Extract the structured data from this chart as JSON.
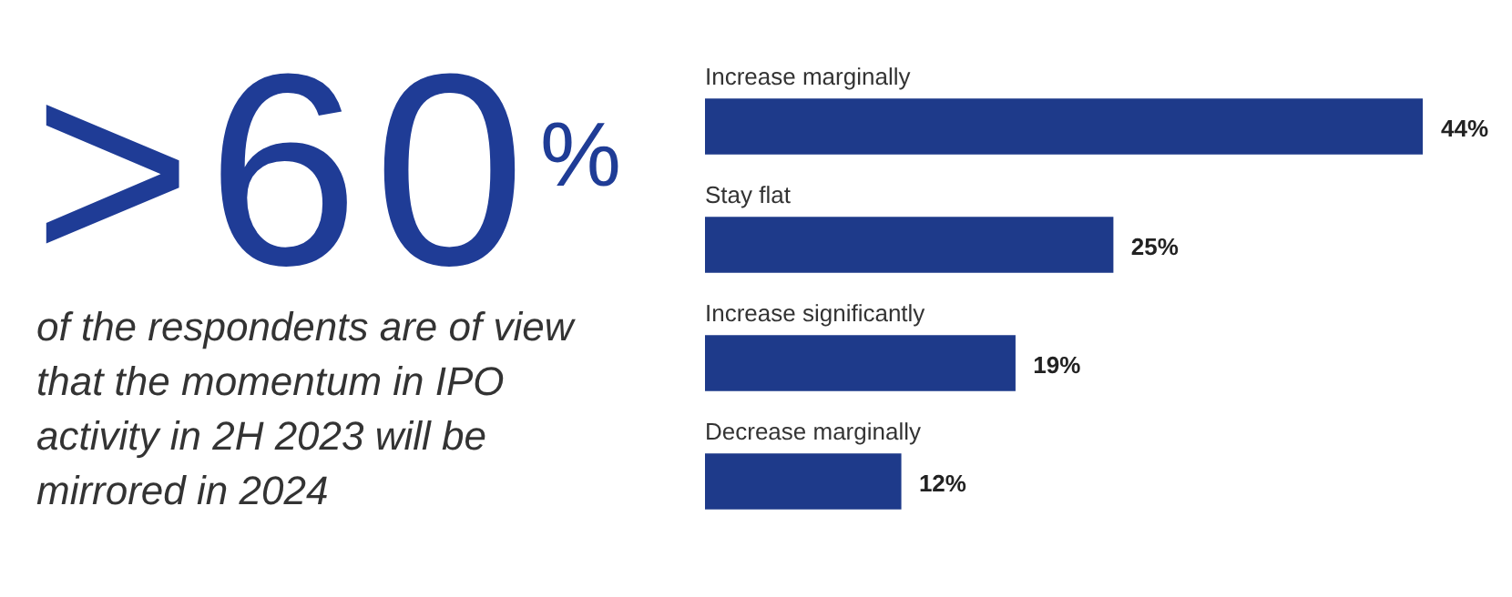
{
  "chart_data": {
    "type": "bar",
    "orientation": "horizontal",
    "title": ">60$^{%}$",
    "subtitle": "of the respondents are of view that the momentum in IPO activity in 2H 2023 will be mirrored in 2024",
    "categories": [
      "Increase marginally",
      "Stay flat",
      "Increase significantly",
      "Decrease marginally"
    ],
    "values": [
      44,
      25,
      19,
      12
    ],
    "value_labels": [
      "44%",
      "25%",
      "19%",
      "12%"
    ],
    "color": "#1e3a8a",
    "xlim": [
      0,
      44
    ]
  }
}
